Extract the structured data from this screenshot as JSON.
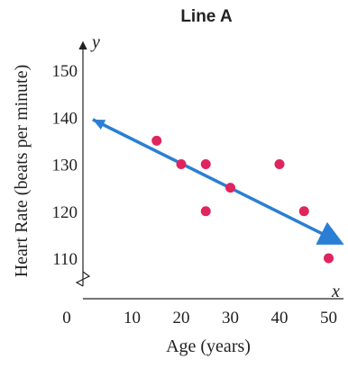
{
  "chart_data": {
    "type": "scatter",
    "title": "Line A",
    "xlabel": "Age (years)",
    "ylabel": "Heart Rate (beats per minute)",
    "x_axis_var": "x",
    "y_axis_var": "y",
    "xlim": [
      0,
      50
    ],
    "ylim": [
      100,
      150
    ],
    "y_axis_break": true,
    "grid": false,
    "x_ticks": [
      0,
      10,
      20,
      30,
      40,
      50
    ],
    "y_ticks": [
      110,
      120,
      130,
      140,
      150
    ],
    "series": [
      {
        "type": "scatter",
        "color": "#e0245e",
        "points": [
          {
            "x": 15,
            "y": 135
          },
          {
            "x": 20,
            "y": 130
          },
          {
            "x": 25,
            "y": 130
          },
          {
            "x": 25,
            "y": 120
          },
          {
            "x": 30,
            "y": 125
          },
          {
            "x": 40,
            "y": 130
          },
          {
            "x": 45,
            "y": 120
          },
          {
            "x": 50,
            "y": 110
          }
        ]
      },
      {
        "type": "line",
        "color": "#2a7fd4",
        "arrows": "both",
        "start": {
          "x": 2,
          "y": 139.5
        },
        "end": {
          "x": 52,
          "y": 113.5
        }
      }
    ]
  }
}
